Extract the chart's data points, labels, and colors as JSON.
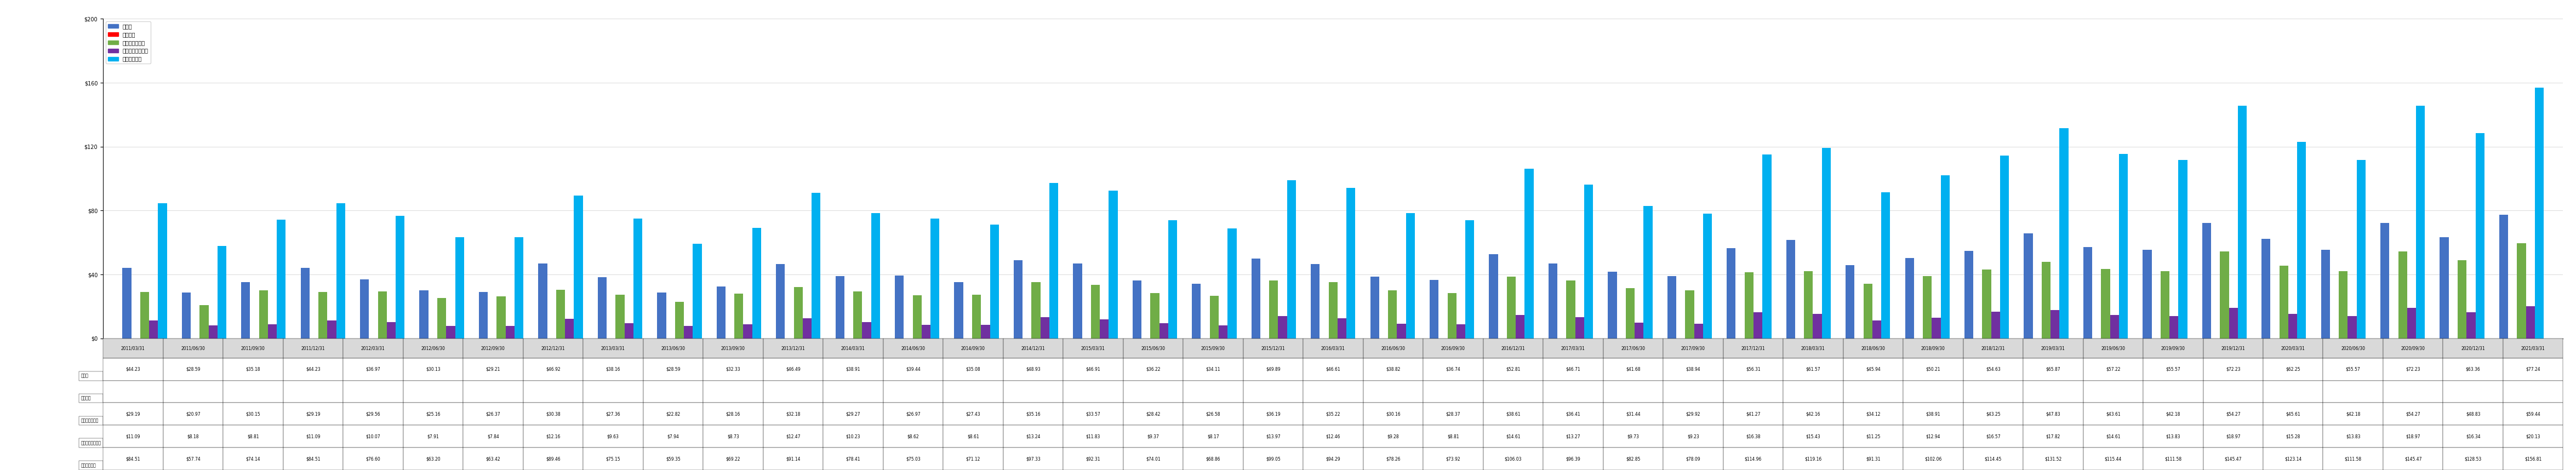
{
  "dates": [
    "2011/03/31",
    "2011/06/30",
    "2011/09/30",
    "2011/12/31",
    "2012/03/31",
    "2012/06/30",
    "2012/09/30",
    "2012/12/31",
    "2013/03/31",
    "2013/06/30",
    "2013/09/30",
    "2013/12/31",
    "2014/03/31",
    "2014/06/30",
    "2014/09/30",
    "2014/12/31",
    "2015/03/31",
    "2015/06/30",
    "2015/09/30",
    "2015/12/31",
    "2016/03/31",
    "2016/06/30",
    "2016/09/30",
    "2016/12/31",
    "2017/03/31",
    "2017/06/30",
    "2017/09/30",
    "2017/12/31",
    "2018/03/31",
    "2018/06/30",
    "2018/09/30",
    "2018/12/31",
    "2019/03/31",
    "2019/06/30",
    "2019/09/30",
    "2019/12/31",
    "2020/03/31",
    "2020/06/30",
    "2020/09/30",
    "2020/12/31",
    "2021/03/31"
  ],
  "買掛金": [
    44.23,
    28.59,
    35.18,
    44.23,
    36.97,
    30.13,
    29.21,
    46.92,
    38.16,
    28.59,
    32.33,
    46.49,
    38.91,
    39.44,
    35.08,
    48.93,
    46.91,
    36.22,
    34.11,
    49.89,
    46.61,
    38.82,
    36.74,
    52.81,
    46.71,
    41.68,
    38.94,
    56.31,
    61.57,
    45.94,
    50.21,
    54.63,
    65.87,
    57.22,
    55.57,
    72.23,
    62.25,
    55.57,
    72.23,
    63.36,
    77.24
  ],
  "繰延収益": [
    0,
    0,
    0,
    0,
    0,
    0,
    0,
    0,
    0,
    0,
    0,
    0,
    0,
    0,
    0,
    0,
    0,
    0,
    0,
    0,
    0,
    0,
    0,
    0,
    0,
    0,
    0,
    0,
    0,
    0,
    0,
    0,
    0,
    0,
    0,
    0,
    0,
    0,
    0,
    0,
    0
  ],
  "短期有利子負債": [
    29.19,
    20.97,
    30.15,
    29.19,
    29.56,
    25.16,
    26.37,
    30.38,
    27.36,
    22.82,
    28.16,
    32.18,
    29.27,
    26.97,
    27.43,
    35.16,
    33.57,
    28.42,
    26.58,
    36.19,
    35.22,
    30.16,
    28.37,
    38.61,
    36.41,
    31.44,
    29.92,
    41.27,
    42.16,
    34.12,
    38.91,
    43.25,
    47.83,
    43.61,
    42.18,
    54.27,
    45.61,
    42.18,
    54.27,
    48.83,
    59.44
  ],
  "その他の流動負債": [
    11.09,
    8.18,
    8.81,
    11.09,
    10.07,
    7.91,
    7.84,
    12.16,
    9.63,
    7.94,
    8.73,
    12.47,
    10.23,
    8.62,
    8.61,
    13.24,
    11.83,
    9.37,
    8.17,
    13.97,
    12.46,
    9.28,
    8.81,
    14.61,
    13.27,
    9.73,
    9.23,
    16.38,
    15.43,
    11.25,
    12.94,
    16.57,
    17.82,
    14.61,
    13.83,
    18.97,
    15.28,
    13.83,
    18.97,
    16.34,
    20.13
  ],
  "流動負債合計": [
    84.51,
    57.74,
    74.14,
    84.51,
    76.6,
    63.2,
    63.42,
    89.46,
    75.15,
    59.35,
    69.22,
    91.14,
    78.41,
    75.03,
    71.12,
    97.33,
    92.31,
    74.01,
    68.86,
    99.05,
    94.29,
    78.26,
    73.92,
    106.03,
    96.39,
    82.85,
    78.09,
    114.96,
    119.16,
    91.31,
    102.06,
    114.45,
    131.52,
    115.44,
    111.58,
    145.47,
    123.14,
    111.58,
    145.47,
    128.53,
    156.81
  ],
  "bar_color_買掛金": "#4472C4",
  "bar_color_繰延収益": "#FF0000",
  "bar_color_短期有利子負債": "#70AD47",
  "bar_color_その他の流動負債": "#7030A0",
  "bar_color_流動負債合計": "#00B0F0",
  "ylim": [
    0,
    200
  ],
  "yticks": [
    0,
    40,
    80,
    120,
    160,
    200
  ],
  "ylabel": "$200",
  "table_fontsize": 5.5,
  "title_fontsize": 10
}
